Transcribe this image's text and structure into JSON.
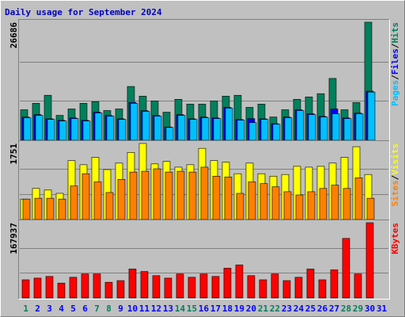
{
  "chart_data": [
    {
      "type": "bar",
      "title": "Daily usage for September 2024",
      "ylim": [
        0,
        26686
      ],
      "yticks": [
        26686
      ],
      "legend_separator": "/",
      "series": [
        {
          "name": "Hits",
          "color": "#00805c",
          "values": [
            6900,
            8350,
            10170,
            5630,
            7080,
            8350,
            8710,
            6720,
            7080,
            12160,
            9980,
            8900,
            6350,
            9260,
            8170,
            8170,
            8900,
            9980,
            10170,
            7440,
            8170,
            5260,
            6900,
            9260,
            9800,
            10530,
            13980,
            6900,
            8530,
            26686,
            null
          ]
        },
        {
          "name": "Files",
          "color": "#0000ff",
          "values": [
            5250,
            5800,
            4850,
            4500,
            5050,
            4500,
            6350,
            5600,
            4850,
            8550,
            6700,
            5600,
            3000,
            5800,
            4850,
            5250,
            5050,
            7450,
            4700,
            4900,
            4850,
            3750,
            5250,
            6900,
            6000,
            5400,
            7080,
            5050,
            6150,
            11100,
            null
          ]
        },
        {
          "name": "Pages",
          "color": "#00c0ff",
          "values": [
            5080,
            5630,
            4720,
            4360,
            4900,
            4360,
            6170,
            5450,
            4720,
            8350,
            6540,
            5450,
            2900,
            5630,
            4720,
            5080,
            4900,
            7260,
            4540,
            3990,
            4720,
            3630,
            5080,
            6720,
            5810,
            5260,
            5990,
            4900,
            5990,
            10890,
            null
          ]
        }
      ]
    },
    {
      "type": "bar",
      "ylim": [
        0,
        1751
      ],
      "yticks": [
        1751
      ],
      "legend_separator": "/",
      "series": [
        {
          "name": "Visits",
          "color": "#ffff00",
          "values": [
            471,
            715,
            678,
            602,
            1356,
            1261,
            1431,
            1149,
            1299,
            1544,
            1751,
            1280,
            1337,
            1205,
            1261,
            1638,
            1356,
            1318,
            1054,
            1299,
            1054,
            998,
            1036,
            1224,
            1205,
            1224,
            1299,
            1431,
            1676,
            1036,
            null
          ]
        },
        {
          "name": "Sites",
          "color": "#ff8000",
          "values": [
            471,
            490,
            490,
            471,
            772,
            1054,
            866,
            621,
            923,
            1092,
            1111,
            1167,
            1092,
            1111,
            1092,
            1205,
            998,
            979,
            602,
            866,
            828,
            753,
            640,
            565,
            640,
            715,
            791,
            715,
            960,
            490,
            null
          ]
        }
      ]
    },
    {
      "type": "bar",
      "ylim": [
        0,
        167937
      ],
      "yticks": [
        167937
      ],
      "categories": [
        "1",
        "2",
        "3",
        "4",
        "5",
        "6",
        "7",
        "8",
        "9",
        "10",
        "11",
        "12",
        "13",
        "14",
        "15",
        "16",
        "17",
        "18",
        "19",
        "20",
        "21",
        "22",
        "23",
        "24",
        "25",
        "26",
        "27",
        "28",
        "29",
        "30",
        "31"
      ],
      "category_colors": [
        "#00805c",
        "#0000ff",
        "#0000ff",
        "#0000ff",
        "#0000ff",
        "#0000ff",
        "#00805c",
        "#00805c",
        "#0000ff",
        "#0000ff",
        "#0000ff",
        "#0000ff",
        "#0000ff",
        "#00805c",
        "#00805c",
        "#0000ff",
        "#0000ff",
        "#0000ff",
        "#0000ff",
        "#0000ff",
        "#00805c",
        "#00805c",
        "#0000ff",
        "#0000ff",
        "#0000ff",
        "#0000ff",
        "#0000ff",
        "#00805c",
        "#00805c",
        "#0000ff",
        "#0000ff"
      ],
      "series": [
        {
          "name": "KBytes",
          "color": "#ff0000",
          "values": [
            40600,
            44290,
            47980,
            33220,
            46140,
            53520,
            53520,
            35060,
            38750,
            64590,
            59050,
            49830,
            44290,
            53520,
            46140,
            53520,
            47980,
            66430,
            73820,
            49830,
            40600,
            53520,
            38750,
            46140,
            64590,
            40600,
            62740,
            132870,
            53520,
            167937,
            null
          ]
        }
      ]
    }
  ]
}
